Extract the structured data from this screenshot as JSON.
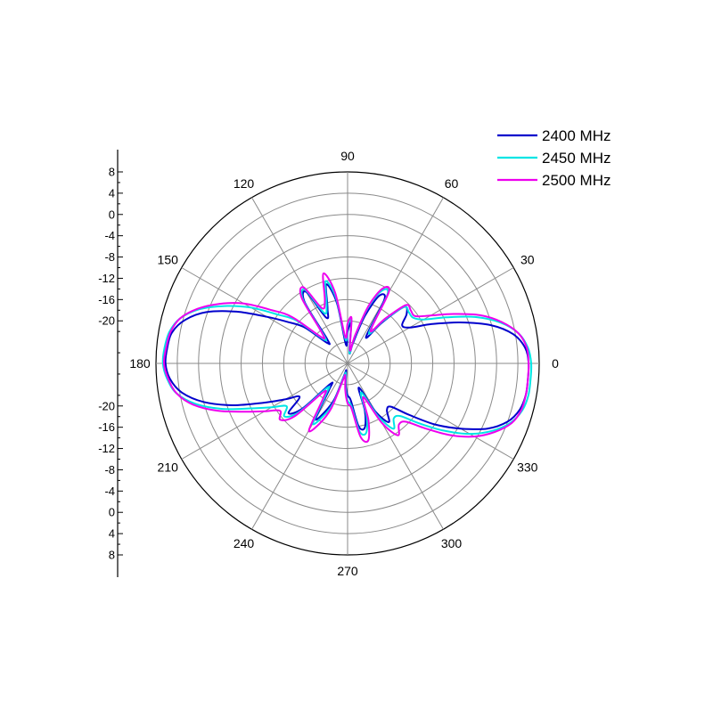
{
  "chart_data": {
    "type": "polar-line",
    "title": "",
    "angle_unit": "degrees",
    "angle_labels": [
      "0",
      "30",
      "60",
      "90",
      "120",
      "150",
      "180",
      "210",
      "240",
      "270",
      "300",
      "330"
    ],
    "angle_ticks": [
      0,
      30,
      60,
      90,
      120,
      150,
      180,
      210,
      240,
      270,
      300,
      330
    ],
    "radial_axis": {
      "min": -28,
      "max": 8,
      "ticks": [
        8,
        4,
        0,
        -4,
        -8,
        -12,
        -16,
        -20
      ],
      "tick_labels_upper": [
        "8",
        "4",
        "0",
        "-4",
        "-8",
        "-12",
        "-16",
        "-20"
      ],
      "tick_labels_lower": [
        "-20",
        "-16",
        "-12",
        "-8",
        "-4",
        "0",
        "4",
        "8"
      ],
      "grid_step": 4
    },
    "grid": true,
    "legend_position": "top-right",
    "series": [
      {
        "name": "2400 MHz",
        "color": "#0000cc",
        "angles": [
          0,
          5,
          10,
          15,
          20,
          25,
          30,
          35,
          40,
          45,
          50,
          55,
          60,
          65,
          70,
          75,
          80,
          85,
          90,
          95,
          100,
          105,
          110,
          115,
          120,
          125,
          130,
          135,
          140,
          145,
          150,
          155,
          160,
          165,
          170,
          175,
          180,
          185,
          190,
          195,
          200,
          205,
          210,
          215,
          220,
          225,
          230,
          235,
          240,
          245,
          250,
          255,
          260,
          265,
          270,
          275,
          280,
          285,
          290,
          295,
          300,
          305,
          310,
          315,
          320,
          325,
          330,
          335,
          340,
          345,
          350,
          355
        ],
        "values": [
          6.0,
          5.5,
          3.6,
          -0.2,
          -5.5,
          -10.5,
          -14.5,
          -15.5,
          -13.5,
          -13.0,
          -18.0,
          -22.0,
          -14.2,
          -14.0,
          -18.5,
          -24.0,
          -26.0,
          -20.5,
          -22.0,
          -24.5,
          -16.5,
          -12.6,
          -17.0,
          -18.5,
          -12.5,
          -14.0,
          -22.0,
          -22.5,
          -17.5,
          -14.5,
          -10.5,
          -5.0,
          0.2,
          3.6,
          5.5,
          6.0,
          6.2,
          5.5,
          3.6,
          0.0,
          -5.0,
          -10.5,
          -14.5,
          -17.0,
          -13.5,
          -16.0,
          -23.0,
          -22.0,
          -16.0,
          -18.0,
          -21.0,
          -26.0,
          -26.5,
          -24.0,
          -22.0,
          -21.0,
          -16.0,
          -15.5,
          -18.5,
          -23.0,
          -17.5,
          -14.5,
          -16.5,
          -16.5,
          -13.0,
          -8.0,
          -3.5,
          1.0,
          4.0,
          5.5,
          6.0,
          6.0
        ]
      },
      {
        "name": "2450 MHz",
        "color": "#00e5e5",
        "angles": [
          0,
          5,
          10,
          15,
          20,
          25,
          30,
          35,
          40,
          45,
          50,
          55,
          60,
          65,
          70,
          75,
          80,
          85,
          90,
          95,
          100,
          105,
          110,
          115,
          120,
          125,
          130,
          135,
          140,
          145,
          150,
          155,
          160,
          165,
          170,
          175,
          180,
          185,
          190,
          195,
          200,
          205,
          210,
          215,
          220,
          225,
          230,
          235,
          240,
          245,
          250,
          255,
          260,
          265,
          270,
          275,
          280,
          285,
          290,
          295,
          300,
          305,
          310,
          315,
          320,
          325,
          330,
          335,
          340,
          345,
          350,
          355
        ],
        "values": [
          6.5,
          6.0,
          4.6,
          1.7,
          -2.5,
          -7.5,
          -11.5,
          -13.0,
          -13.0,
          -13.0,
          -17.5,
          -21.0,
          -13.0,
          -13.0,
          -17.0,
          -23.0,
          -26.0,
          -20.0,
          -21.0,
          -23.5,
          -15.5,
          -12.0,
          -16.5,
          -17.5,
          -12.0,
          -13.5,
          -21.0,
          -21.5,
          -15.5,
          -12.0,
          -7.0,
          -2.5,
          1.7,
          4.6,
          6.0,
          6.5,
          6.7,
          6.0,
          4.6,
          1.5,
          -3.0,
          -8.0,
          -11.5,
          -14.0,
          -12.5,
          -15.0,
          -22.0,
          -21.0,
          -15.0,
          -17.0,
          -20.0,
          -25.5,
          -26.0,
          -23.5,
          -21.0,
          -20.0,
          -15.0,
          -14.5,
          -17.5,
          -22.0,
          -16.5,
          -13.0,
          -14.5,
          -14.0,
          -10.5,
          -6.0,
          -1.5,
          2.0,
          4.6,
          6.0,
          6.5,
          6.5
        ]
      },
      {
        "name": "2500 MHz",
        "color": "#ee00ee",
        "angles": [
          0,
          5,
          10,
          15,
          20,
          25,
          30,
          35,
          40,
          45,
          50,
          55,
          60,
          65,
          70,
          75,
          80,
          85,
          90,
          95,
          100,
          105,
          110,
          115,
          120,
          125,
          130,
          135,
          140,
          145,
          150,
          155,
          160,
          165,
          170,
          175,
          180,
          185,
          190,
          195,
          200,
          205,
          210,
          215,
          220,
          225,
          230,
          235,
          240,
          245,
          250,
          255,
          260,
          265,
          270,
          275,
          280,
          285,
          290,
          295,
          300,
          305,
          310,
          315,
          320,
          325,
          330,
          335,
          340,
          345,
          350,
          355
        ],
        "values": [
          6.0,
          5.8,
          4.6,
          2.0,
          -1.5,
          -6.0,
          -10.0,
          -12.5,
          -12.5,
          -12.5,
          -17.0,
          -20.5,
          -12.5,
          -12.5,
          -16.5,
          -22.5,
          -25.5,
          -19.5,
          -20.5,
          -23.0,
          -14.5,
          -10.5,
          -15.5,
          -16.5,
          -11.5,
          -13.0,
          -20.5,
          -21.0,
          -14.5,
          -10.5,
          -5.5,
          -1.5,
          2.0,
          4.6,
          5.8,
          6.2,
          6.5,
          5.8,
          4.6,
          2.0,
          -2.0,
          -6.5,
          -10.0,
          -12.5,
          -11.5,
          -14.0,
          -21.0,
          -20.0,
          -13.5,
          -15.5,
          -19.0,
          -25.0,
          -25.5,
          -23.0,
          -20.5,
          -19.5,
          -14.0,
          -13.0,
          -16.5,
          -21.0,
          -15.0,
          -11.5,
          -13.0,
          -12.5,
          -9.0,
          -4.5,
          -0.5,
          2.5,
          4.8,
          5.8,
          6.0,
          6.0
        ]
      }
    ]
  }
}
